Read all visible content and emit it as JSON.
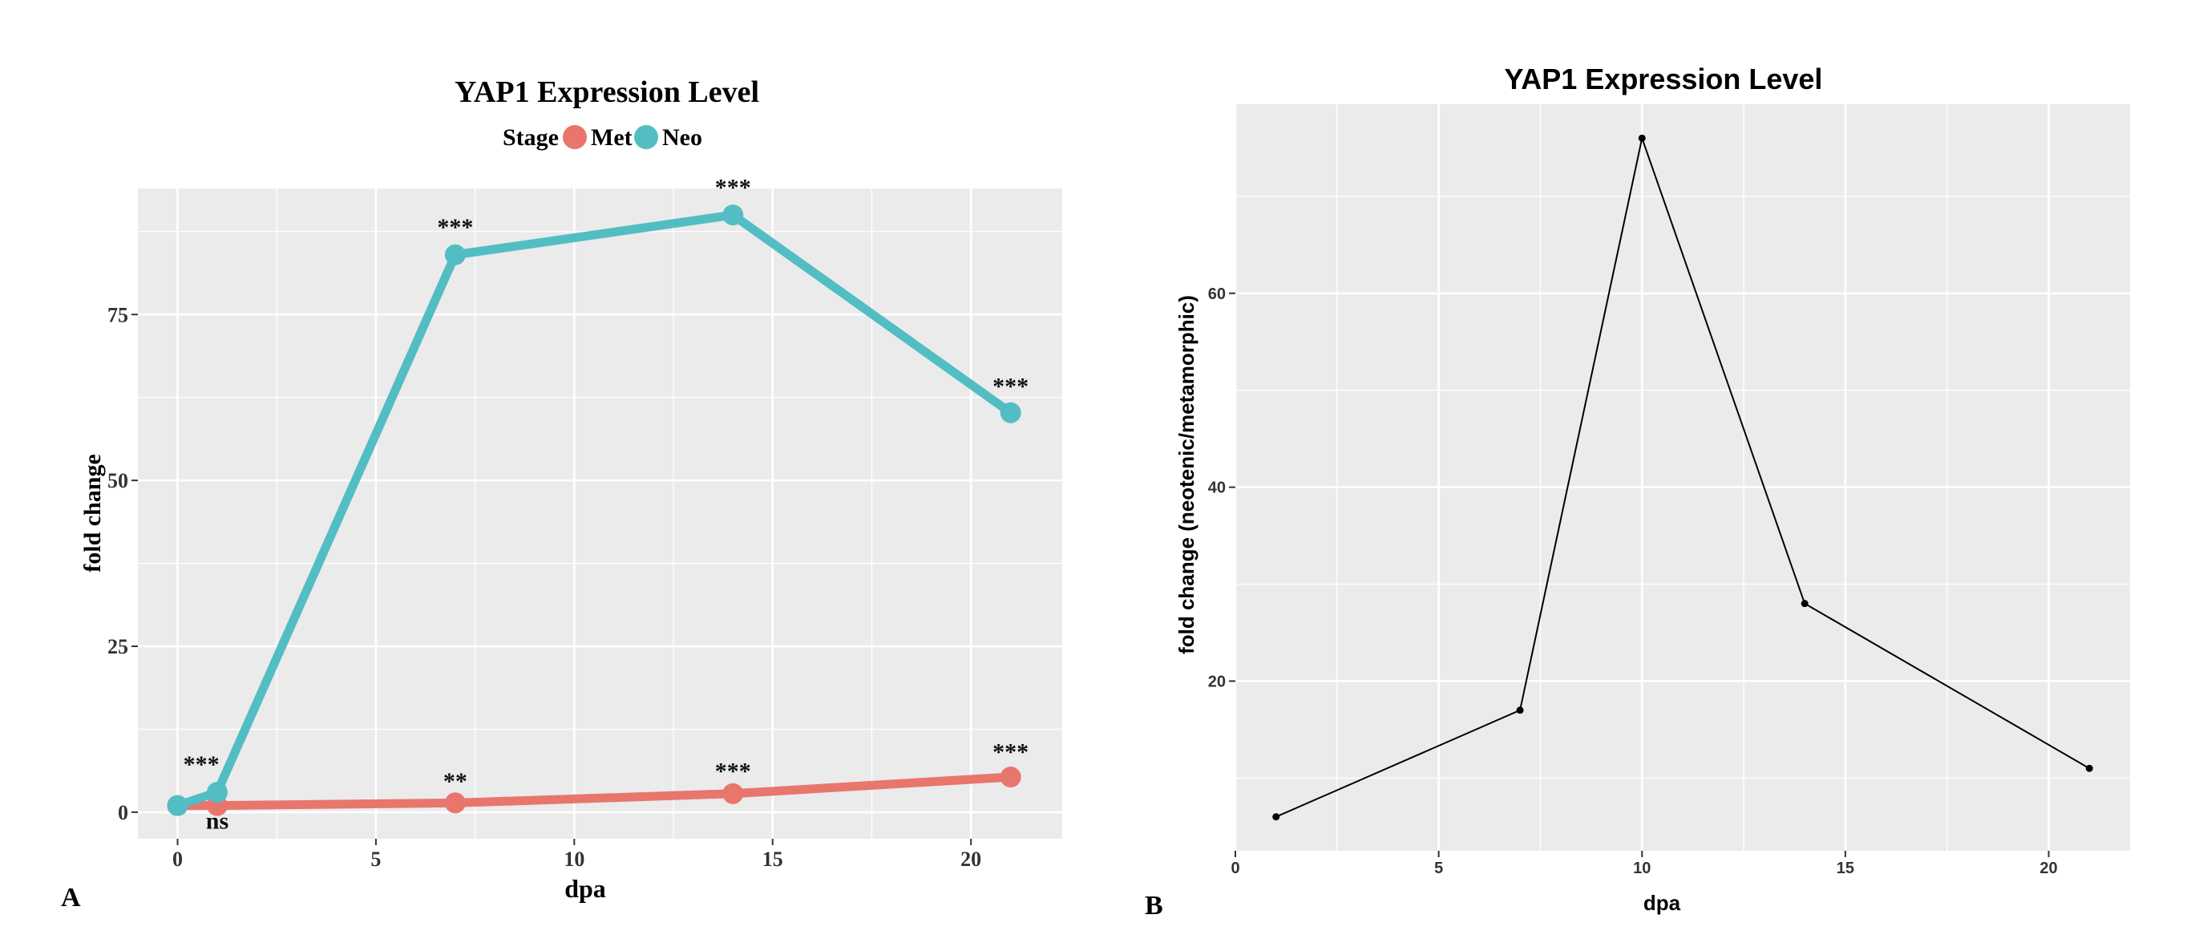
{
  "chart_data": [
    {
      "panel_label": "A",
      "type": "line",
      "title": "YAP1 Expression Level",
      "xlabel": "dpa",
      "ylabel": "fold change",
      "legend": {
        "title": "Stage",
        "placement": "top",
        "entries": [
          "Met",
          "Neo"
        ]
      },
      "xlim": [
        -1,
        22.3
      ],
      "ylim": [
        -4,
        94
      ],
      "xticks": [
        0,
        5,
        10,
        15,
        20
      ],
      "yticks": [
        0,
        25,
        50,
        75
      ],
      "grid": true,
      "background": "#ebebeb",
      "series": [
        {
          "name": "Met",
          "color": "#e8766c",
          "x": [
            0,
            1,
            7,
            14,
            21
          ],
          "y": [
            1,
            1,
            1.4,
            2.8,
            5.3
          ]
        },
        {
          "name": "Neo",
          "color": "#52bec3",
          "x": [
            0,
            1,
            7,
            14,
            21
          ],
          "y": [
            1,
            3,
            84,
            90,
            60.2
          ]
        }
      ],
      "annotations": [
        {
          "x": 0.6,
          "y": 6,
          "text": "***"
        },
        {
          "x": 1,
          "y": -2.5,
          "text": "ns"
        },
        {
          "x": 7,
          "y": 87,
          "text": "***"
        },
        {
          "x": 14,
          "y": 93,
          "text": "***"
        },
        {
          "x": 21,
          "y": 63,
          "text": "***"
        },
        {
          "x": 7,
          "y": 3.5,
          "text": "**"
        },
        {
          "x": 14,
          "y": 5,
          "text": "***"
        },
        {
          "x": 21,
          "y": 7.9,
          "text": "***"
        }
      ]
    },
    {
      "panel_label": "B",
      "type": "line",
      "title": "YAP1 Expression Level",
      "xlabel": "dpa",
      "ylabel": "fold change (neotenic/metamorphic)",
      "xlim": [
        0,
        22
      ],
      "ylim": [
        2.5,
        79.5
      ],
      "xticks": [
        0,
        5,
        10,
        15,
        20
      ],
      "yticks": [
        20,
        40,
        60
      ],
      "grid": true,
      "background": "#ebebeb",
      "series": [
        {
          "color": "#000000",
          "x": [
            1,
            7,
            10,
            14,
            21
          ],
          "y": [
            6,
            17,
            76,
            28,
            11
          ]
        }
      ]
    }
  ]
}
